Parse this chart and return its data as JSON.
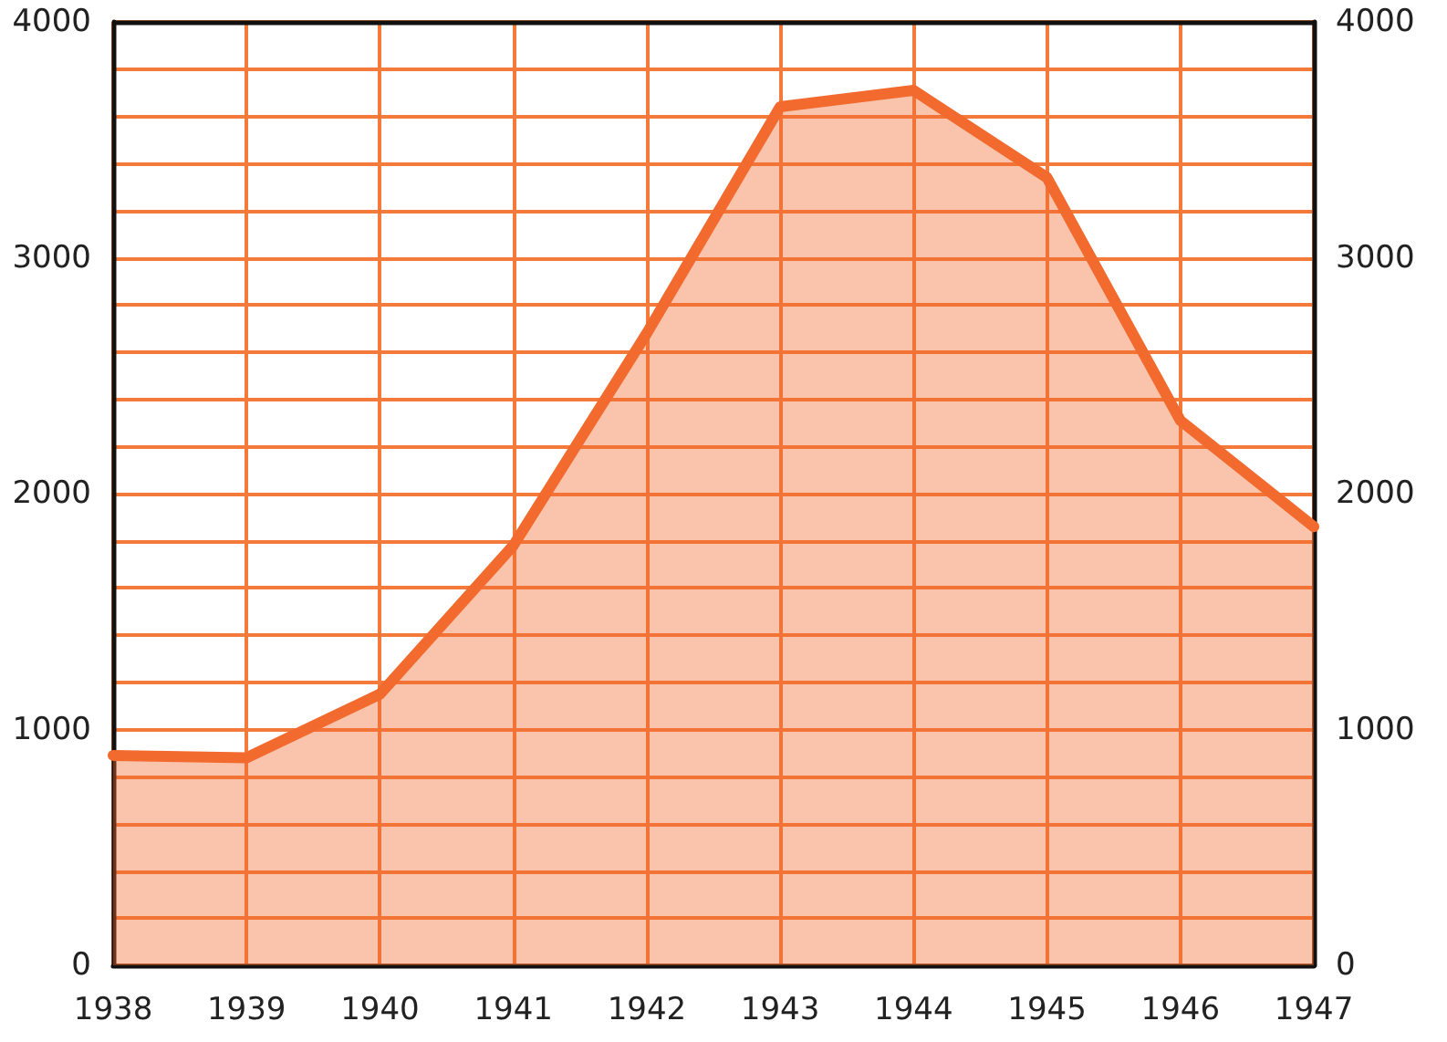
{
  "chart_data": {
    "type": "area",
    "categories": [
      "1938",
      "1939",
      "1940",
      "1941",
      "1942",
      "1943",
      "1944",
      "1945",
      "1946",
      "1947"
    ],
    "series": [
      {
        "color": "#f26a2e",
        "values": [
          890,
          880,
          1150,
          1780,
          2680,
          3640,
          3710,
          3340,
          2310,
          1860
        ]
      }
    ],
    "ylim": [
      0,
      4000
    ],
    "yticks": [
      0,
      1000,
      2000,
      3000,
      4000
    ],
    "y2lim": [
      0,
      4000
    ],
    "y2ticks": [
      0,
      1000,
      2000,
      3000,
      4000
    ],
    "grid": true,
    "marker": "none",
    "line_style": "solid"
  }
}
